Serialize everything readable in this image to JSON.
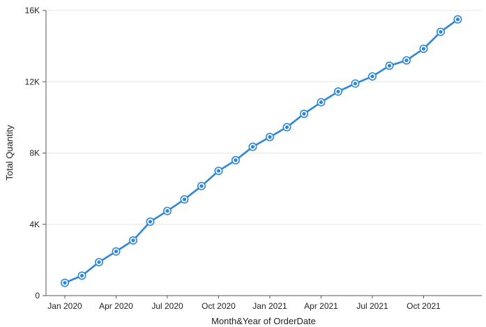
{
  "chart_data": {
    "type": "line",
    "title": "",
    "xlabel": "Month&Year of OrderDate",
    "ylabel": "Total Quantity",
    "ylim": [
      0,
      16000
    ],
    "yticks": [
      0,
      4000,
      8000,
      12000,
      16000
    ],
    "ytick_labels": [
      "0",
      "4K",
      "8K",
      "12K",
      "16K"
    ],
    "xtick_labels": [
      "Jan 2020",
      "Apr 2020",
      "Jul 2020",
      "Oct 2020",
      "Jan 2021",
      "Apr 2021",
      "Jul 2021",
      "Oct 2021"
    ],
    "x": [
      "Jan 2020",
      "Feb 2020",
      "Mar 2020",
      "Apr 2020",
      "May 2020",
      "Jun 2020",
      "Jul 2020",
      "Aug 2020",
      "Sep 2020",
      "Oct 2020",
      "Nov 2020",
      "Dec 2020",
      "Jan 2021",
      "Feb 2021",
      "Mar 2021",
      "Apr 2021",
      "May 2021",
      "Jun 2021",
      "Jul 2021",
      "Aug 2021",
      "Sep 2021",
      "Oct 2021",
      "Nov 2021",
      "Dec 2021"
    ],
    "series": [
      {
        "values": [
          720,
          1120,
          1880,
          2480,
          3100,
          4150,
          4750,
          5400,
          6150,
          7000,
          7600,
          8350,
          8900,
          9450,
          10200,
          10850,
          11450,
          11900,
          12300,
          12900,
          13200,
          13850,
          14800,
          15500
        ],
        "color": "#2d87d8"
      }
    ],
    "grid": true,
    "legend": "none"
  }
}
